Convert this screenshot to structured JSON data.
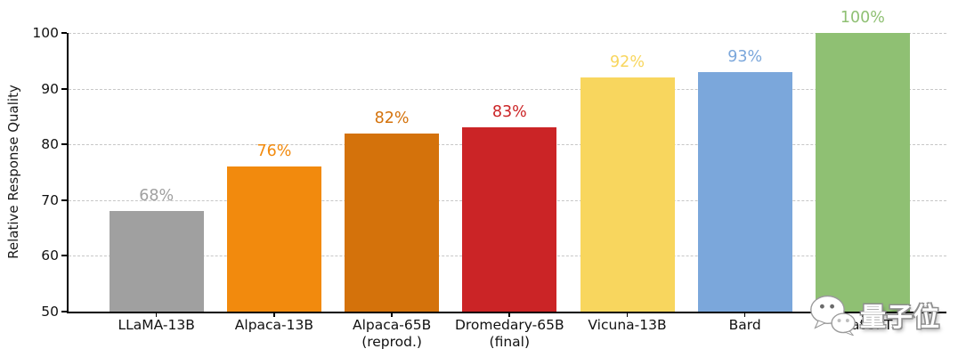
{
  "chart_data": {
    "type": "bar",
    "title": "",
    "xlabel": "",
    "ylabel": "Relative Response Quality",
    "categories": [
      "LLaMA-13B",
      "Alpaca-13B",
      "Alpaca-65B\n(reprod.)",
      "Dromedary-65B\n(final)",
      "Vicuna-13B",
      "Bard",
      "ChatGPT"
    ],
    "values": [
      68,
      76,
      82,
      83,
      92,
      93,
      100
    ],
    "value_labels": [
      "68%",
      "76%",
      "82%",
      "83%",
      "92%",
      "93%",
      "100%"
    ],
    "bar_colors": [
      "#a0a0a0",
      "#f28a0d",
      "#d4720b",
      "#cb2426",
      "#f8d65e",
      "#7ba7db",
      "#8fc073"
    ],
    "ylim": [
      50,
      100
    ],
    "yticks": [
      50,
      60,
      70,
      80,
      90,
      100
    ],
    "grid": "horizontal dashed",
    "grid_color": "#c7c7c7",
    "axis_color": "#000000",
    "legend_position": "none"
  },
  "watermark": {
    "text": "量子位",
    "icon": "wechat-icon"
  }
}
